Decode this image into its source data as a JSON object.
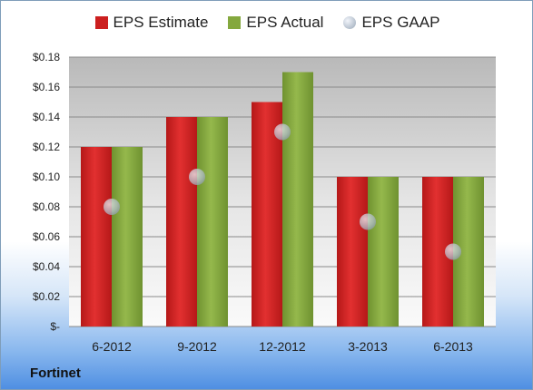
{
  "chart_data": {
    "type": "bar",
    "categories": [
      "6-2012",
      "9-2012",
      "12-2012",
      "3-2013",
      "6-2013"
    ],
    "series": [
      {
        "name": "EPS Estimate",
        "type": "bar",
        "color": "#cc1f1f",
        "values": [
          0.12,
          0.14,
          0.15,
          0.1,
          0.1
        ]
      },
      {
        "name": "EPS Actual",
        "type": "bar",
        "color": "#84a83e",
        "values": [
          0.12,
          0.14,
          0.17,
          0.1,
          0.1
        ]
      },
      {
        "name": "EPS GAAP",
        "type": "scatter",
        "color": "#b4bfcc",
        "values": [
          0.08,
          0.1,
          0.13,
          0.07,
          0.05
        ]
      }
    ],
    "ylim": [
      0,
      0.18
    ],
    "yticks": [
      0,
      0.02,
      0.04,
      0.06,
      0.08,
      0.1,
      0.12,
      0.14,
      0.16,
      0.18
    ],
    "ytick_labels": [
      "$-",
      "$0.02",
      "$0.04",
      "$0.06",
      "$0.08",
      "$0.10",
      "$0.12",
      "$0.14",
      "$0.16",
      "$0.18"
    ],
    "grid": true,
    "legend_position": "top"
  },
  "company": "Fortinet"
}
